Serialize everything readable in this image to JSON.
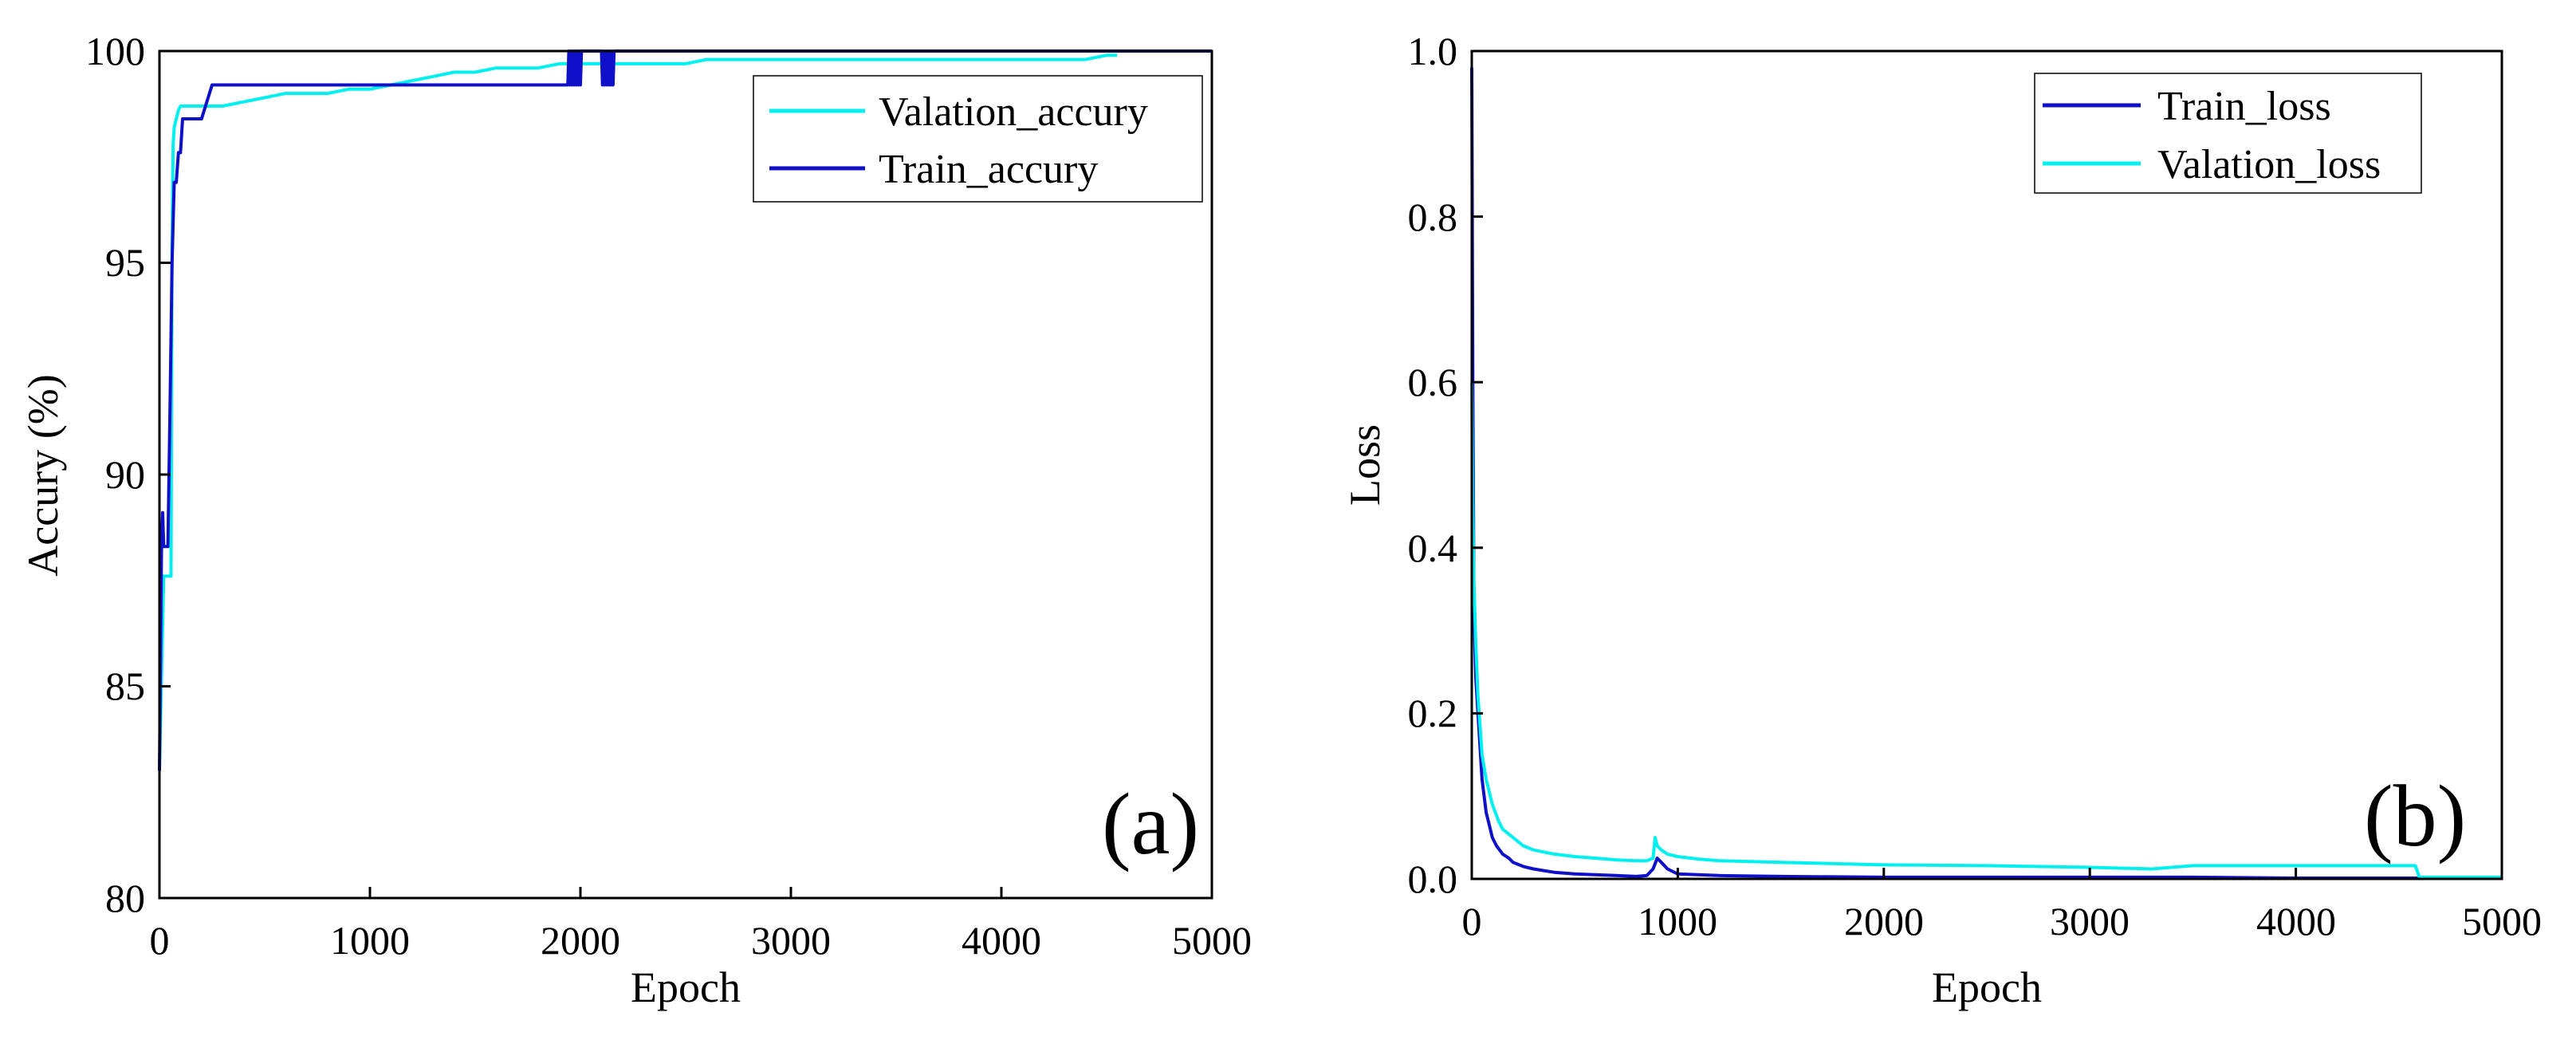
{
  "colors": {
    "train": "#1010c8",
    "validation": "#00f0f0",
    "panel_label": "#e8101a",
    "axis": "#000000"
  },
  "chart_data": [
    {
      "type": "line",
      "panel_label": "(a)",
      "xlabel": "Epoch",
      "ylabel": "Accury (%)",
      "xlim": [
        0,
        5000
      ],
      "ylim": [
        80,
        100
      ],
      "xticks": [
        "0",
        "1000",
        "2000",
        "3000",
        "4000",
        "5000"
      ],
      "yticks": [
        "80",
        "85",
        "90",
        "95",
        "100"
      ],
      "legend": {
        "position": "top-right",
        "entries": [
          "Valation_accury",
          "Train_accury"
        ]
      },
      "series": [
        {
          "name": "Valation_accury",
          "color_key": "validation",
          "x": [
            0,
            20,
            40,
            55,
            60,
            65,
            70,
            80,
            90,
            100,
            120,
            150,
            200,
            300,
            400,
            500,
            600,
            700,
            800,
            900,
            1000,
            1100,
            1200,
            1300,
            1400,
            1500,
            1600,
            1700,
            1800,
            1900,
            2000,
            2100,
            2200,
            2300,
            2400,
            2500,
            2600,
            2800,
            3000,
            3200,
            3400,
            3600,
            3800,
            4000,
            4200,
            4400,
            4500,
            4550
          ],
          "y": [
            83.0,
            87.6,
            87.6,
            87.6,
            95.5,
            97.8,
            98.2,
            98.4,
            98.6,
            98.7,
            98.7,
            98.7,
            98.7,
            98.7,
            98.8,
            98.9,
            99.0,
            99.0,
            99.0,
            99.1,
            99.1,
            99.2,
            99.3,
            99.4,
            99.5,
            99.5,
            99.6,
            99.6,
            99.6,
            99.7,
            99.7,
            99.7,
            99.7,
            99.7,
            99.7,
            99.7,
            99.8,
            99.8,
            99.8,
            99.8,
            99.8,
            99.8,
            99.8,
            99.8,
            99.8,
            99.8,
            99.9,
            99.9
          ]
        },
        {
          "name": "Train_accury",
          "color_key": "train",
          "x": [
            0,
            10,
            15,
            20,
            30,
            40,
            50,
            60,
            70,
            80,
            90,
            100,
            110,
            130,
            150,
            200,
            250,
            260,
            1900,
            1940,
            1945,
            1950,
            1955,
            1960,
            1965,
            1970,
            1975,
            1980,
            1985,
            1990,
            1995,
            2000,
            2005,
            2010,
            2100,
            2105,
            2110,
            2115,
            2120,
            2125,
            2130,
            2135,
            2140,
            2145,
            2150,
            2155,
            2160,
            2200,
            3000,
            4000,
            5000
          ],
          "y": [
            83.0,
            88.3,
            89.1,
            88.3,
            88.3,
            88.3,
            91.5,
            95.0,
            96.9,
            96.9,
            97.6,
            97.6,
            98.4,
            98.4,
            98.4,
            98.4,
            99.2,
            99.2,
            99.2,
            99.2,
            100,
            99.2,
            100,
            99.2,
            100,
            99.2,
            100,
            99.2,
            100,
            99.2,
            100,
            99.2,
            100,
            100,
            100,
            99.2,
            100,
            99.2,
            100,
            99.2,
            100,
            99.2,
            100,
            99.2,
            100,
            99.2,
            100,
            100,
            100,
            100,
            100
          ]
        }
      ]
    },
    {
      "type": "line",
      "panel_label": "(b)",
      "xlabel": "Epoch",
      "ylabel": "Loss",
      "xlim": [
        0,
        5000
      ],
      "ylim": [
        0,
        1.0
      ],
      "xticks": [
        "0",
        "1000",
        "2000",
        "3000",
        "4000",
        "5000"
      ],
      "yticks": [
        "0.0",
        "0.2",
        "0.4",
        "0.6",
        "0.8",
        "1.0"
      ],
      "legend": {
        "position": "top-right",
        "entries": [
          "Train_loss",
          "Valation_loss"
        ]
      },
      "series": [
        {
          "name": "Train_loss",
          "color_key": "train",
          "x": [
            0,
            5,
            10,
            15,
            20,
            30,
            40,
            50,
            60,
            70,
            80,
            100,
            120,
            150,
            180,
            200,
            250,
            300,
            350,
            400,
            500,
            600,
            700,
            800,
            850,
            880,
            900,
            920,
            950,
            1000,
            1200,
            1500,
            2000,
            2500,
            3000,
            3500,
            4000,
            4500,
            5000
          ],
          "y": [
            0.98,
            0.6,
            0.35,
            0.28,
            0.24,
            0.2,
            0.16,
            0.12,
            0.1,
            0.08,
            0.07,
            0.05,
            0.04,
            0.03,
            0.025,
            0.02,
            0.015,
            0.012,
            0.01,
            0.008,
            0.006,
            0.005,
            0.004,
            0.003,
            0.004,
            0.012,
            0.025,
            0.02,
            0.012,
            0.006,
            0.004,
            0.003,
            0.002,
            0.002,
            0.002,
            0.002,
            0.001,
            0.001,
            0.001
          ]
        },
        {
          "name": "Valation_loss",
          "color_key": "validation",
          "x": [
            0,
            5,
            10,
            20,
            30,
            50,
            70,
            100,
            130,
            150,
            200,
            250,
            300,
            400,
            500,
            600,
            700,
            800,
            850,
            880,
            890,
            900,
            920,
            950,
            1000,
            1100,
            1200,
            1500,
            2000,
            2500,
            3000,
            3300,
            3500,
            4000,
            4500,
            4580,
            4600,
            5000
          ],
          "y": [
            0.6,
            0.45,
            0.36,
            0.28,
            0.22,
            0.15,
            0.12,
            0.09,
            0.07,
            0.06,
            0.05,
            0.04,
            0.035,
            0.03,
            0.027,
            0.025,
            0.023,
            0.022,
            0.022,
            0.025,
            0.05,
            0.04,
            0.035,
            0.03,
            0.027,
            0.024,
            0.022,
            0.02,
            0.017,
            0.016,
            0.014,
            0.012,
            0.016,
            0.016,
            0.016,
            0.016,
            0.002,
            0.002
          ]
        }
      ]
    }
  ]
}
